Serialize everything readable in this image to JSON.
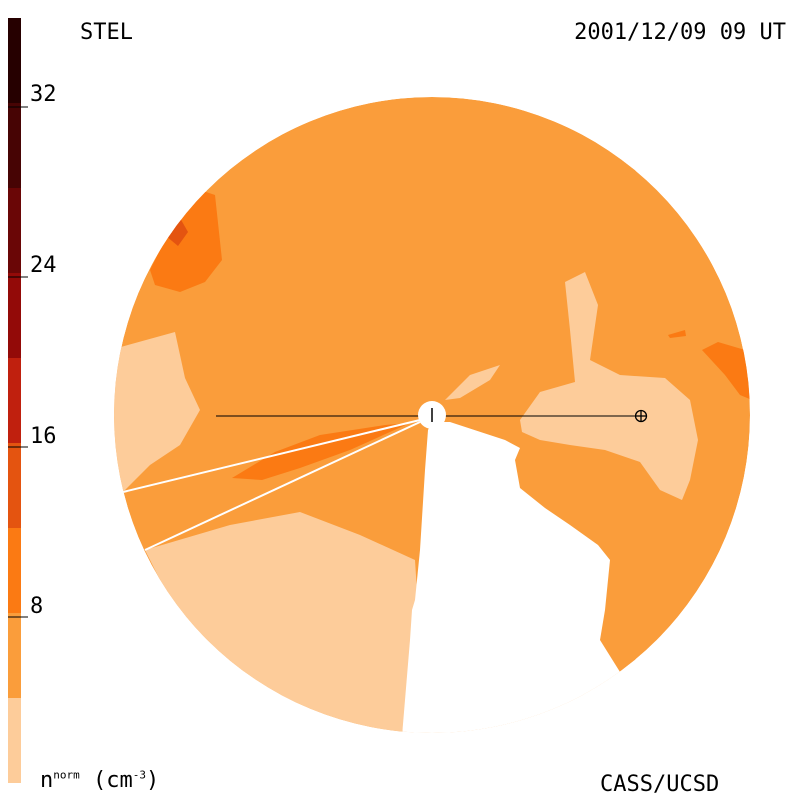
{
  "header": {
    "instrument": "STEL",
    "timestamp": "2001/12/09 09 UT"
  },
  "footer": {
    "quantity_base": "n",
    "quantity_superscript": "norm",
    "unit_prefix": " (cm",
    "unit_superscript": "-3",
    "unit_suffix": ")",
    "credit": "CASS/UCSD"
  },
  "colorbar": {
    "ticks": [
      {
        "label": "32",
        "value": 32
      },
      {
        "label": "24",
        "value": 24
      },
      {
        "label": "16",
        "value": 16
      },
      {
        "label": "8",
        "value": 8
      }
    ],
    "range": [
      0,
      36
    ],
    "bands": [
      {
        "from": 0,
        "to": 4,
        "color": "#fdcc9a"
      },
      {
        "from": 4,
        "to": 8,
        "color": "#fa9d3b"
      },
      {
        "from": 8,
        "to": 12,
        "color": "#fb7a13"
      },
      {
        "from": 12,
        "to": 16,
        "color": "#e45410"
      },
      {
        "from": 16,
        "to": 20,
        "color": "#c0200e"
      },
      {
        "from": 20,
        "to": 24,
        "color": "#930a08"
      },
      {
        "from": 24,
        "to": 28,
        "color": "#6a0606"
      },
      {
        "from": 28,
        "to": 32,
        "color": "#470404"
      },
      {
        "from": 32,
        "to": 36,
        "color": "#260000"
      }
    ]
  },
  "map": {
    "background_color": "#fa9d3b",
    "low_color": "#fdcc9a",
    "mid_color": "#fb7a13",
    "high_color": "#e45410",
    "sun_symbol": "sun-marker",
    "earth_symbol": "earth-marker"
  }
}
